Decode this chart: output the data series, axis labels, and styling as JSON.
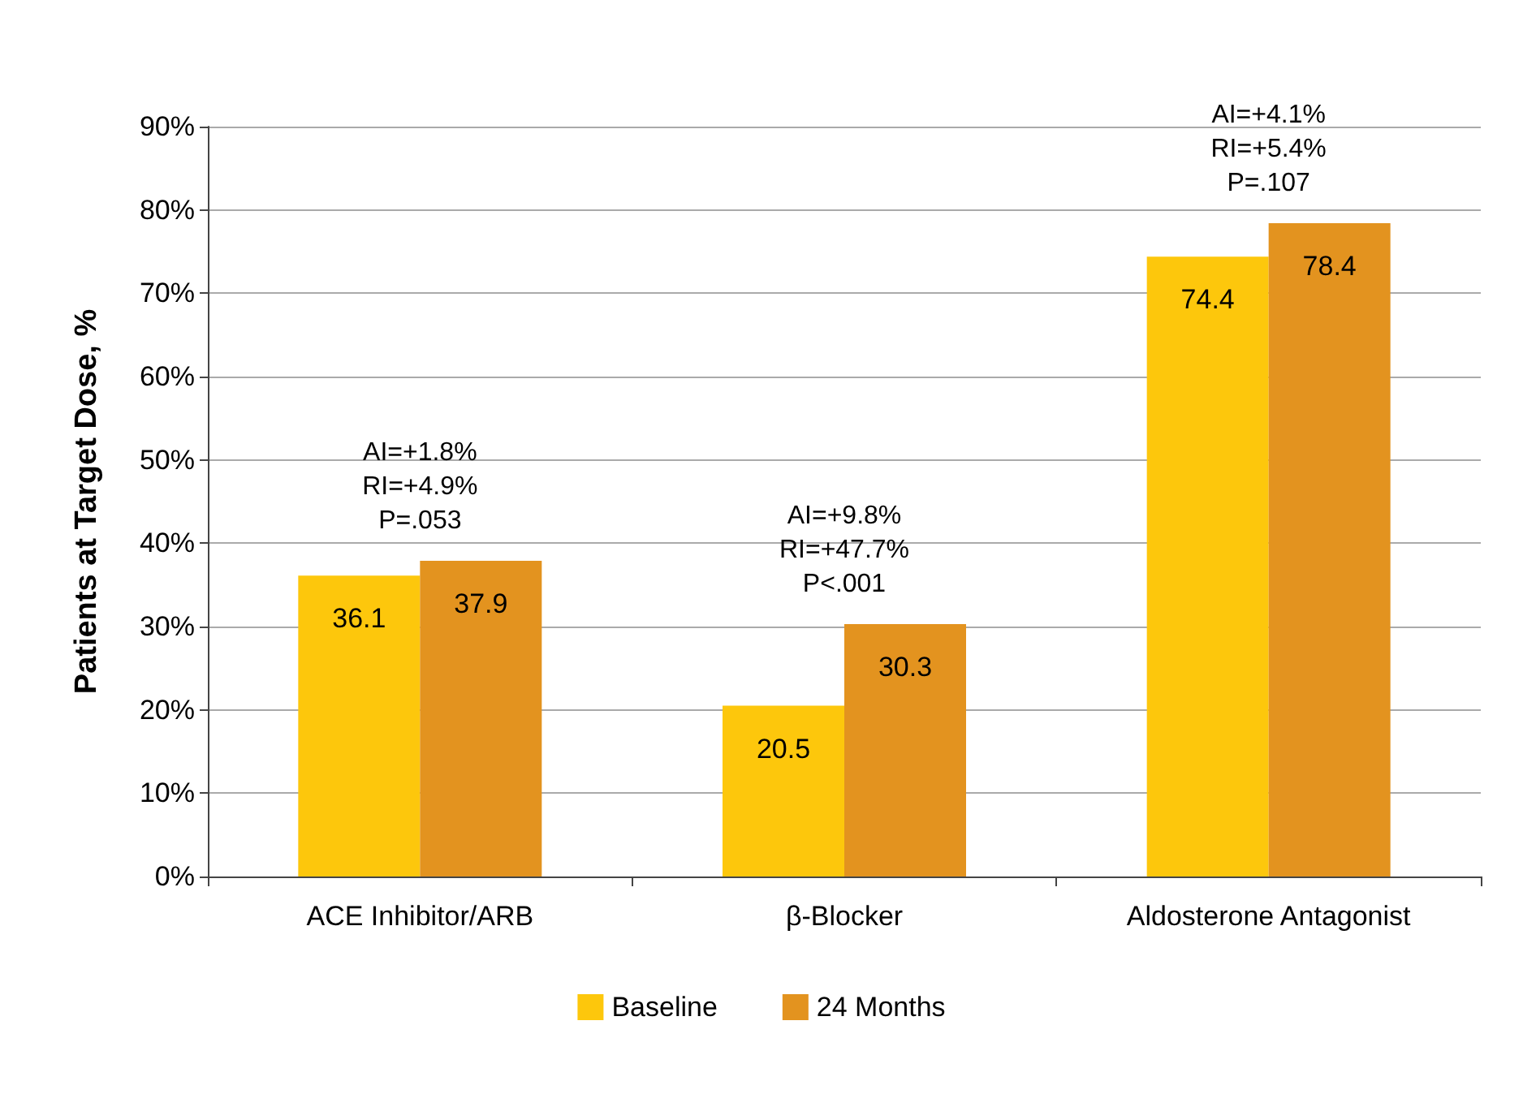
{
  "chart_data": {
    "type": "bar",
    "ylabel": "Patients at Target Dose, %",
    "categories": [
      "ACE Inhibitor/ARB",
      "β-Blocker",
      "Aldosterone Antagonist"
    ],
    "series": [
      {
        "name": "Baseline",
        "color": "#fdc70c",
        "values": [
          36.1,
          20.5,
          74.4
        ]
      },
      {
        "name": "24 Months",
        "color": "#e3931f",
        "values": [
          37.9,
          30.3,
          78.4
        ]
      }
    ],
    "ylim": [
      0,
      90
    ],
    "yticks": [
      {
        "value": 0,
        "label": "0%"
      },
      {
        "value": 10,
        "label": "10%"
      },
      {
        "value": 20,
        "label": "20%"
      },
      {
        "value": 30,
        "label": "30%"
      },
      {
        "value": 40,
        "label": "40%"
      },
      {
        "value": 50,
        "label": "50%"
      },
      {
        "value": 60,
        "label": "60%"
      },
      {
        "value": 70,
        "label": "70%"
      },
      {
        "value": 80,
        "label": "80%"
      },
      {
        "value": 90,
        "label": "90%"
      }
    ],
    "grid": "y",
    "legend": "bottom",
    "data_labels": true,
    "annotations": [
      "AI=+1.8%\nRI=+4.9%\nP=.053",
      "AI=+9.8%\nRI=+47.7%\nP<.001",
      "AI=+4.1%\nRI=+5.4%\nP=.107"
    ]
  }
}
